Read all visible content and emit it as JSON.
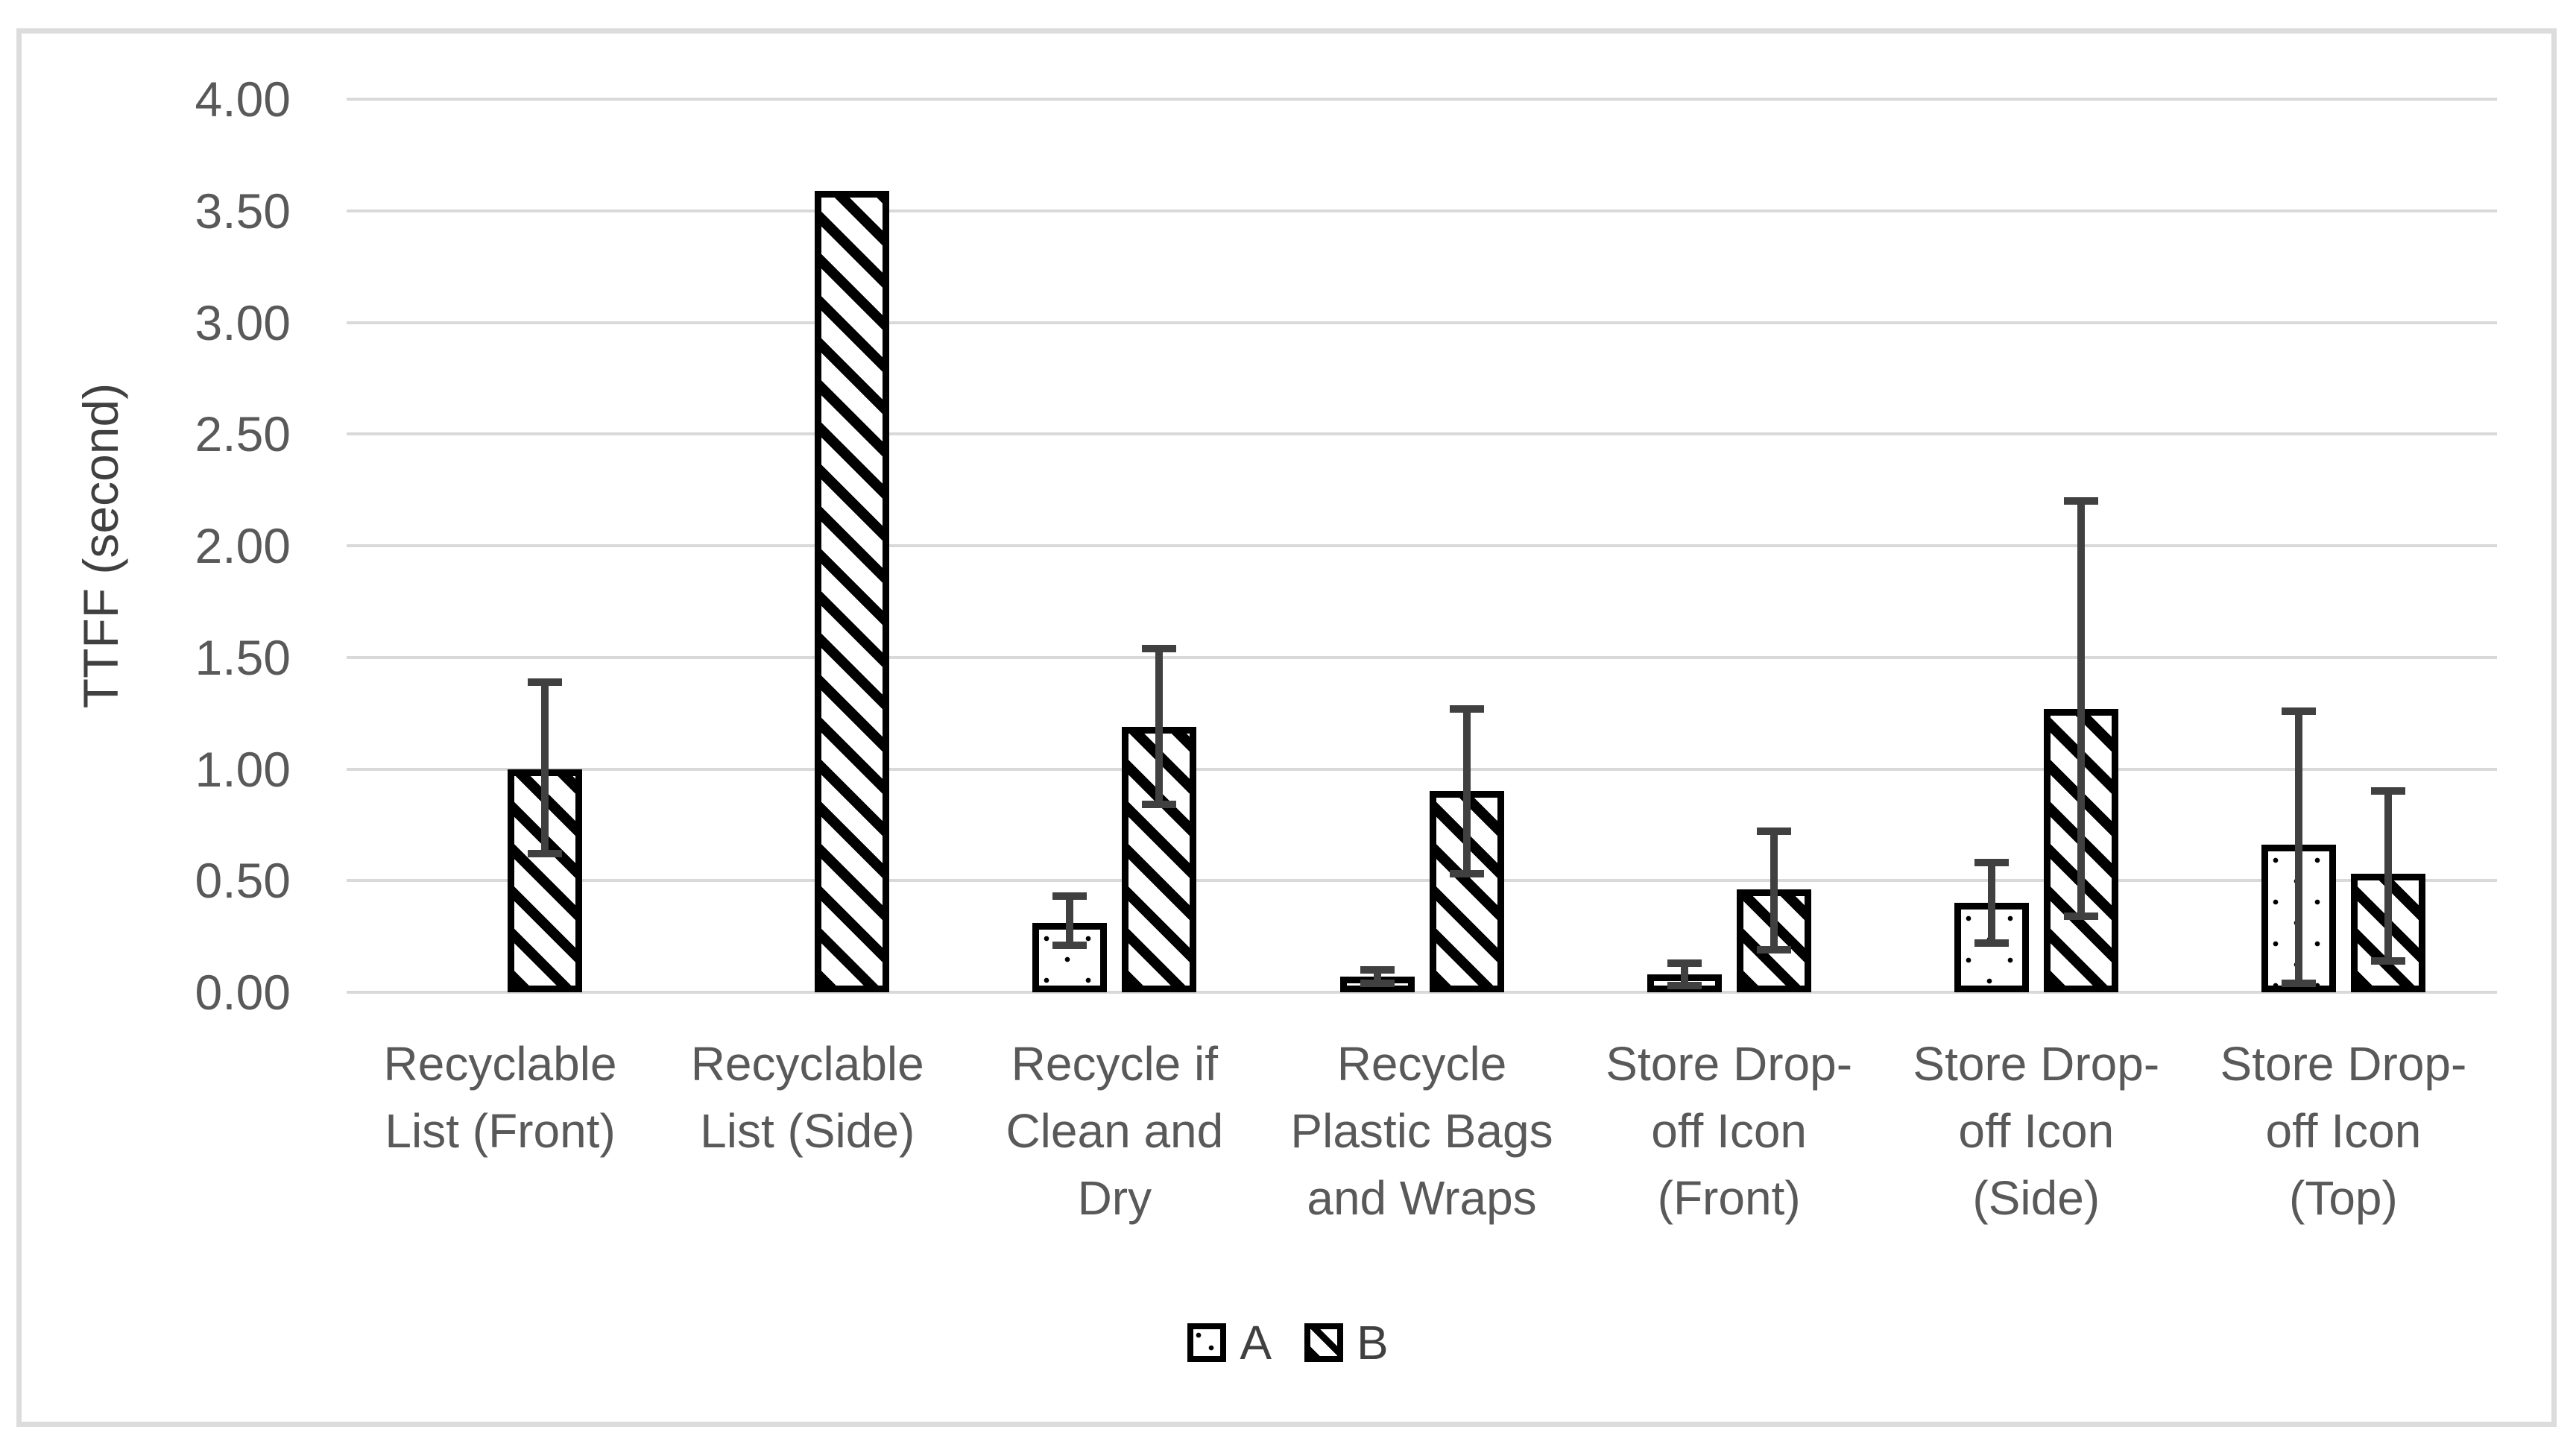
{
  "chart_data": {
    "type": "bar",
    "title": "",
    "ylabel": "TTFF (second)",
    "xlabel": "",
    "ylim": [
      0,
      4
    ],
    "ytick_step": 0.5,
    "ytick_labels": [
      "0.00",
      "0.50",
      "1.00",
      "1.50",
      "2.00",
      "2.50",
      "3.00",
      "3.50",
      "4.00"
    ],
    "grid": true,
    "legend_position": "bottom",
    "categories": [
      "Recyclable\nList (Front)",
      "Recyclable\nList (Side)",
      "Recycle if\nClean and\nDry",
      "Recycle\nPlastic Bags\nand Wraps",
      "Store Drop-\noff Icon\n(Front)",
      "Store Drop-\noff Icon\n(Side)",
      "Store Drop-\noff Icon\n(Top)"
    ],
    "series": [
      {
        "name": "A",
        "pattern": "dots",
        "values": [
          null,
          null,
          0.31,
          0.07,
          0.08,
          0.4,
          0.66
        ],
        "error_low": [
          null,
          null,
          0.21,
          0.04,
          0.03,
          0.22,
          0.04
        ],
        "error_high": [
          null,
          null,
          0.43,
          0.1,
          0.13,
          0.58,
          1.26
        ]
      },
      {
        "name": "B",
        "pattern": "diagonal-hatch",
        "values": [
          1.0,
          3.59,
          1.19,
          0.9,
          0.46,
          1.27,
          0.53
        ],
        "error_low": [
          0.62,
          null,
          0.84,
          0.53,
          0.19,
          0.34,
          0.14
        ],
        "error_high": [
          1.39,
          null,
          1.54,
          1.27,
          0.72,
          2.2,
          0.9
        ]
      }
    ],
    "colors": {
      "bar_fill": "#ffffff",
      "bar_border": "#000000",
      "error_bar": "#404040",
      "gridline": "#d9d9d9",
      "tick_text": "#595959",
      "axis_title_text": "#404040",
      "frame_border": "#dcdcdc",
      "background": "#ffffff"
    }
  }
}
